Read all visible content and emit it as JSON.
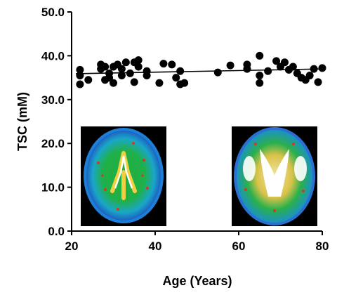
{
  "chart_data": {
    "type": "scatter",
    "title": "",
    "xlabel": "Age (Years)",
    "ylabel": "TSC (mM)",
    "xlim": [
      20,
      80
    ],
    "ylim": [
      0,
      50
    ],
    "x_ticks": [
      "20",
      "40",
      "60",
      "80"
    ],
    "y_ticks": [
      "0.0",
      "10.0",
      "20.0",
      "30.0",
      "40.0",
      "50.0"
    ],
    "grid": false,
    "legend": "none",
    "marker_color": "#000000",
    "points": [
      {
        "x": 22,
        "y": 36.8
      },
      {
        "x": 22,
        "y": 35.5
      },
      {
        "x": 22,
        "y": 33.5
      },
      {
        "x": 24,
        "y": 34.5
      },
      {
        "x": 27,
        "y": 38.0
      },
      {
        "x": 27,
        "y": 37.0
      },
      {
        "x": 28,
        "y": 34.5
      },
      {
        "x": 28,
        "y": 37.5
      },
      {
        "x": 29,
        "y": 36.0
      },
      {
        "x": 29,
        "y": 35.0
      },
      {
        "x": 30,
        "y": 37.5
      },
      {
        "x": 30,
        "y": 33.8
      },
      {
        "x": 31,
        "y": 38.0
      },
      {
        "x": 32,
        "y": 35.5
      },
      {
        "x": 32,
        "y": 37.0
      },
      {
        "x": 33,
        "y": 38.5
      },
      {
        "x": 34,
        "y": 36.0
      },
      {
        "x": 35,
        "y": 34.0
      },
      {
        "x": 35,
        "y": 38.5
      },
      {
        "x": 36,
        "y": 39.0
      },
      {
        "x": 36,
        "y": 37.5
      },
      {
        "x": 38,
        "y": 36.5
      },
      {
        "x": 38,
        "y": 35.5
      },
      {
        "x": 41,
        "y": 33.8
      },
      {
        "x": 42,
        "y": 38.2
      },
      {
        "x": 44,
        "y": 38.0
      },
      {
        "x": 45,
        "y": 35.0
      },
      {
        "x": 46,
        "y": 33.5
      },
      {
        "x": 46,
        "y": 36.5
      },
      {
        "x": 47,
        "y": 33.8
      },
      {
        "x": 55,
        "y": 36.2
      },
      {
        "x": 58,
        "y": 37.8
      },
      {
        "x": 62,
        "y": 38.0
      },
      {
        "x": 62,
        "y": 37.0
      },
      {
        "x": 65,
        "y": 40.0
      },
      {
        "x": 65,
        "y": 35.5
      },
      {
        "x": 65,
        "y": 33.8
      },
      {
        "x": 67,
        "y": 36.5
      },
      {
        "x": 69,
        "y": 38.8
      },
      {
        "x": 70,
        "y": 37.5
      },
      {
        "x": 71,
        "y": 38.5
      },
      {
        "x": 72,
        "y": 36.8
      },
      {
        "x": 73,
        "y": 37.5
      },
      {
        "x": 74,
        "y": 36.0
      },
      {
        "x": 75,
        "y": 35.0
      },
      {
        "x": 76,
        "y": 34.5
      },
      {
        "x": 77,
        "y": 35.5
      },
      {
        "x": 78,
        "y": 37.0
      },
      {
        "x": 79,
        "y": 34.0
      },
      {
        "x": 80,
        "y": 37.2
      }
    ],
    "trendline": {
      "x": [
        21,
        80
      ],
      "y": [
        35.9,
        37.0
      ]
    },
    "insets": [
      {
        "name": "axial-tsc-map-young",
        "near_x": 30,
        "style": "green-dominant"
      },
      {
        "name": "axial-tsc-map-old",
        "near_x": 68,
        "style": "white-ventricles"
      }
    ]
  }
}
